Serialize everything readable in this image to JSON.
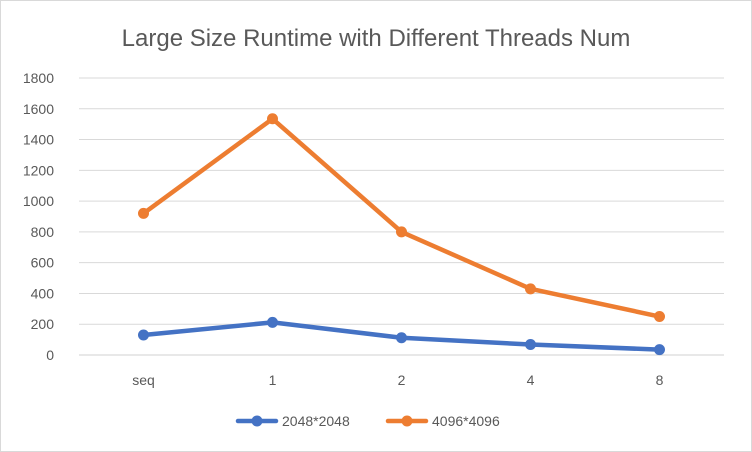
{
  "chart_data": {
    "type": "line",
    "title": "Large Size Runtime with Different Threads Num",
    "xlabel": "",
    "ylabel": "",
    "categories": [
      "seq",
      "1",
      "2",
      "4",
      "8"
    ],
    "ylim": [
      0,
      1800
    ],
    "yticks": [
      "0",
      "200",
      "400",
      "600",
      "800",
      "1000",
      "1200",
      "1400",
      "1600",
      "1800"
    ],
    "grid": true,
    "legend_position": "bottom",
    "series": [
      {
        "name": "2048*2048",
        "color": "#4472C4",
        "values": [
          130,
          212,
          112,
          68,
          35
        ]
      },
      {
        "name": "4096*4096",
        "color": "#ED7D31",
        "values": [
          920,
          1535,
          800,
          430,
          250
        ]
      }
    ]
  }
}
